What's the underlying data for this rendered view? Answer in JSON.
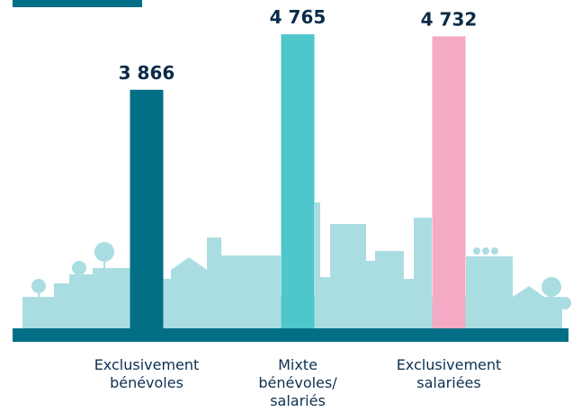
{
  "chart_data": {
    "type": "bar",
    "categories": [
      "Exclusivement bénévoles",
      "Mixte bénévoles/ salariés",
      "Exclusivement salariées"
    ],
    "values": [
      3866,
      4765,
      4732
    ],
    "value_labels": [
      "3 866",
      "4 765",
      "4 732"
    ],
    "colors": [
      "#036f86",
      "#4dc6cc",
      "#f4a9c4"
    ],
    "ylim": [
      0,
      5000
    ]
  }
}
